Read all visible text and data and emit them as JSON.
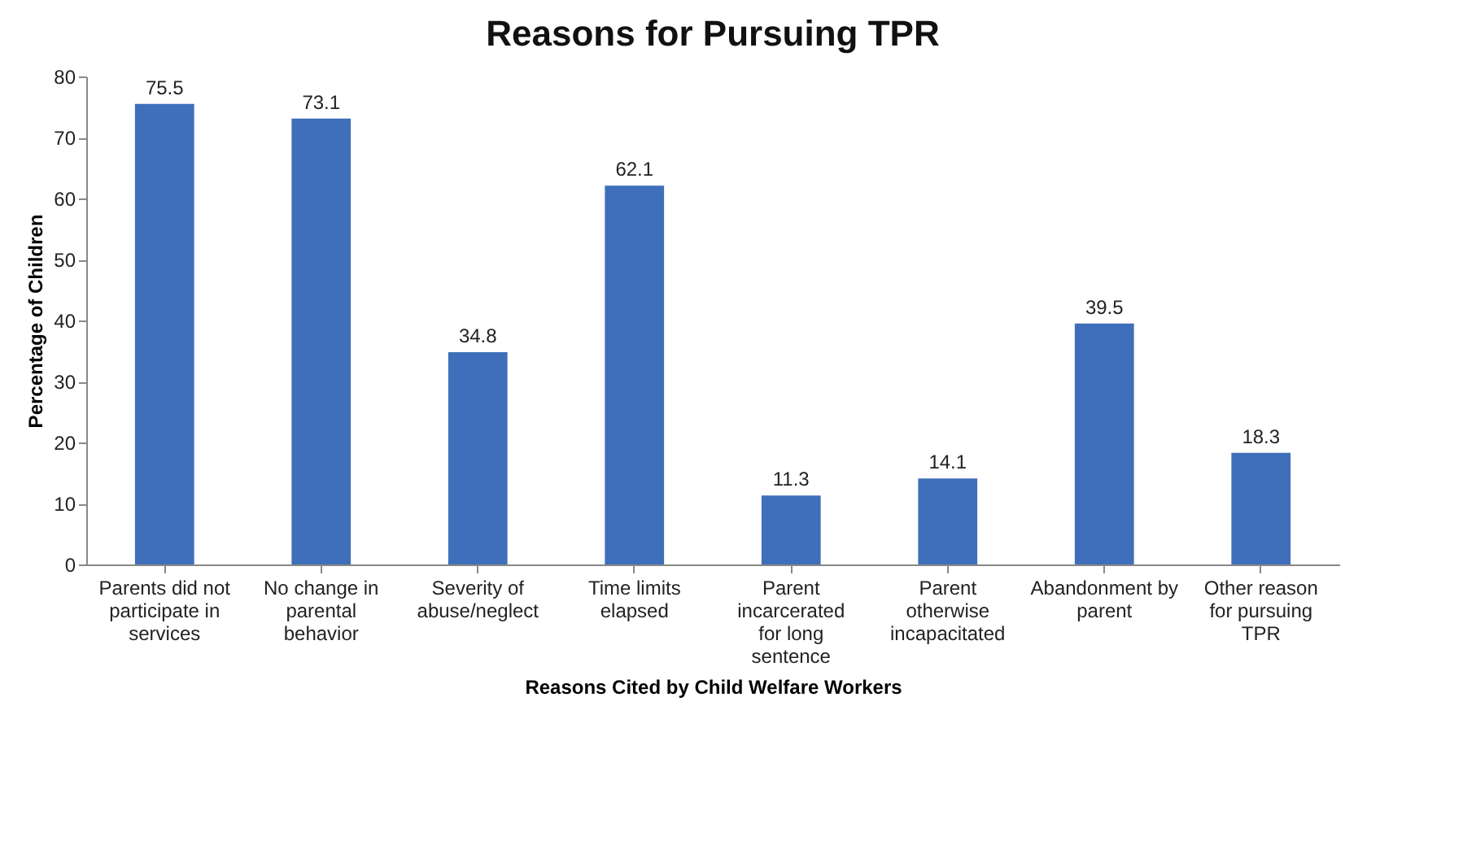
{
  "chart_data": {
    "type": "bar",
    "title": "Reasons for Pursuing TPR",
    "xlabel": "Reasons Cited by Child Welfare Workers",
    "ylabel": "Percentage of Children",
    "categories": [
      "Parents did not participate in services",
      "No change in parental behavior",
      "Severity of abuse/neglect",
      "Time limits elapsed",
      "Parent incarcerated for long sentence",
      "Parent otherwise incapacitated",
      "Abandonment by parent",
      "Other reason for pursuing TPR"
    ],
    "values": [
      75.5,
      73.1,
      34.8,
      62.1,
      11.3,
      14.1,
      39.5,
      18.3
    ],
    "color": "#3f6fba",
    "ylim": [
      0,
      80
    ],
    "yticks": [
      0,
      10,
      20,
      30,
      40,
      50,
      60,
      70,
      80
    ],
    "grid": false,
    "data_labels": true
  }
}
